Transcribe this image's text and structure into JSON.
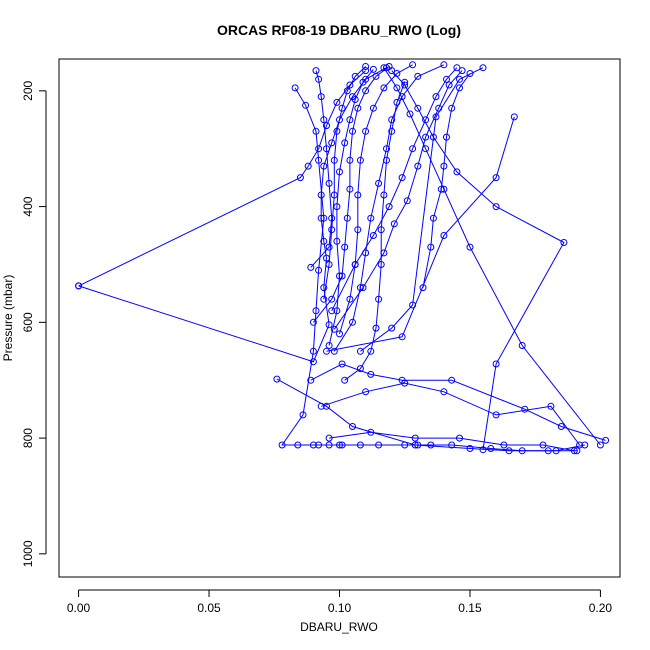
{
  "chart_data": {
    "type": "line",
    "title": "ORCAS RF08-19 DBARU_RWO (Log)",
    "xlabel": "DBARU_RWO",
    "ylabel": "Pressure (mbar)",
    "xlim": [
      -0.0075,
      0.2075
    ],
    "ylim": [
      1040,
      145
    ],
    "y_axis_reversed": true,
    "x_ticks": [
      0.0,
      0.05,
      0.1,
      0.15,
      0.2
    ],
    "x_tick_labels": [
      "0.00",
      "0.05",
      "0.10",
      "0.15",
      "0.20"
    ],
    "y_ticks": [
      200,
      400,
      600,
      800,
      1000
    ],
    "y_tick_labels": [
      "200",
      "400",
      "600",
      "800",
      "1000"
    ],
    "grid": false,
    "marker": "open-circle",
    "series": [
      {
        "values": [
          {
            "x": 0.0,
            "y": 537
          },
          {
            "x": 0.09,
            "y": 668
          },
          {
            "x": 0.096,
            "y": 604
          },
          {
            "x": 0.094,
            "y": 540
          },
          {
            "x": 0.095,
            "y": 489
          },
          {
            "x": 0.094,
            "y": 460
          },
          {
            "x": 0.093,
            "y": 420
          },
          {
            "x": 0.093,
            "y": 380
          },
          {
            "x": 0.094,
            "y": 330
          },
          {
            "x": 0.097,
            "y": 290
          },
          {
            "x": 0.1,
            "y": 250
          },
          {
            "x": 0.105,
            "y": 210
          },
          {
            "x": 0.11,
            "y": 180
          },
          {
            "x": 0.118,
            "y": 160
          }
        ]
      },
      {
        "values": [
          {
            "x": 0.0,
            "y": 537
          },
          {
            "x": 0.085,
            "y": 350
          },
          {
            "x": 0.088,
            "y": 330
          },
          {
            "x": 0.092,
            "y": 300
          },
          {
            "x": 0.095,
            "y": 260
          },
          {
            "x": 0.099,
            "y": 220
          },
          {
            "x": 0.104,
            "y": 190
          },
          {
            "x": 0.11,
            "y": 165
          }
        ]
      },
      {
        "values": [
          {
            "x": 0.083,
            "y": 195
          },
          {
            "x": 0.087,
            "y": 225
          },
          {
            "x": 0.091,
            "y": 270
          },
          {
            "x": 0.092,
            "y": 320
          },
          {
            "x": 0.094,
            "y": 420
          },
          {
            "x": 0.092,
            "y": 510
          },
          {
            "x": 0.091,
            "y": 580
          },
          {
            "x": 0.09,
            "y": 650
          },
          {
            "x": 0.086,
            "y": 760
          },
          {
            "x": 0.078,
            "y": 812
          },
          {
            "x": 0.09,
            "y": 812
          },
          {
            "x": 0.1,
            "y": 812
          },
          {
            "x": 0.115,
            "y": 812
          },
          {
            "x": 0.13,
            "y": 812
          }
        ]
      },
      {
        "values": [
          {
            "x": 0.076,
            "y": 698
          },
          {
            "x": 0.095,
            "y": 745
          },
          {
            "x": 0.105,
            "y": 780
          },
          {
            "x": 0.129,
            "y": 812
          },
          {
            "x": 0.15,
            "y": 818
          },
          {
            "x": 0.165,
            "y": 822
          },
          {
            "x": 0.18,
            "y": 822
          },
          {
            "x": 0.191,
            "y": 822
          }
        ]
      },
      {
        "values": [
          {
            "x": 0.089,
            "y": 700
          },
          {
            "x": 0.101,
            "y": 672
          },
          {
            "x": 0.112,
            "y": 690
          },
          {
            "x": 0.124,
            "y": 700
          },
          {
            "x": 0.143,
            "y": 700
          },
          {
            "x": 0.171,
            "y": 750
          },
          {
            "x": 0.185,
            "y": 780
          },
          {
            "x": 0.202,
            "y": 804
          }
        ]
      },
      {
        "values": [
          {
            "x": 0.093,
            "y": 745
          },
          {
            "x": 0.11,
            "y": 720
          },
          {
            "x": 0.125,
            "y": 705
          },
          {
            "x": 0.14,
            "y": 720
          },
          {
            "x": 0.16,
            "y": 760
          },
          {
            "x": 0.181,
            "y": 745
          },
          {
            "x": 0.192,
            "y": 812
          }
        ]
      },
      {
        "values": [
          {
            "x": 0.098,
            "y": 650
          },
          {
            "x": 0.105,
            "y": 600
          },
          {
            "x": 0.108,
            "y": 540
          },
          {
            "x": 0.11,
            "y": 480
          },
          {
            "x": 0.112,
            "y": 420
          },
          {
            "x": 0.115,
            "y": 360
          },
          {
            "x": 0.118,
            "y": 300
          },
          {
            "x": 0.12,
            "y": 250
          },
          {
            "x": 0.124,
            "y": 210
          },
          {
            "x": 0.13,
            "y": 175
          },
          {
            "x": 0.14,
            "y": 155
          }
        ]
      },
      {
        "values": [
          {
            "x": 0.1,
            "y": 620
          },
          {
            "x": 0.104,
            "y": 560
          },
          {
            "x": 0.106,
            "y": 500
          },
          {
            "x": 0.107,
            "y": 440
          },
          {
            "x": 0.107,
            "y": 380
          },
          {
            "x": 0.108,
            "y": 320
          },
          {
            "x": 0.11,
            "y": 270
          },
          {
            "x": 0.113,
            "y": 230
          },
          {
            "x": 0.117,
            "y": 195
          },
          {
            "x": 0.122,
            "y": 170
          },
          {
            "x": 0.128,
            "y": 155
          }
        ]
      },
      {
        "values": [
          {
            "x": 0.09,
            "y": 600
          },
          {
            "x": 0.097,
            "y": 560
          },
          {
            "x": 0.101,
            "y": 520
          },
          {
            "x": 0.102,
            "y": 470
          },
          {
            "x": 0.103,
            "y": 420
          },
          {
            "x": 0.104,
            "y": 370
          },
          {
            "x": 0.104,
            "y": 320
          },
          {
            "x": 0.105,
            "y": 270
          },
          {
            "x": 0.107,
            "y": 230
          },
          {
            "x": 0.11,
            "y": 200
          },
          {
            "x": 0.114,
            "y": 175
          },
          {
            "x": 0.119,
            "y": 158
          }
        ]
      },
      {
        "values": [
          {
            "x": 0.096,
            "y": 640
          },
          {
            "x": 0.099,
            "y": 580
          },
          {
            "x": 0.1,
            "y": 520
          },
          {
            "x": 0.099,
            "y": 460
          },
          {
            "x": 0.099,
            "y": 400
          },
          {
            "x": 0.1,
            "y": 340
          },
          {
            "x": 0.102,
            "y": 290
          },
          {
            "x": 0.104,
            "y": 250
          },
          {
            "x": 0.106,
            "y": 215
          },
          {
            "x": 0.109,
            "y": 185
          },
          {
            "x": 0.113,
            "y": 163
          }
        ]
      },
      {
        "values": [
          {
            "x": 0.094,
            "y": 560
          },
          {
            "x": 0.096,
            "y": 500
          },
          {
            "x": 0.097,
            "y": 440
          },
          {
            "x": 0.098,
            "y": 380
          },
          {
            "x": 0.098,
            "y": 320
          },
          {
            "x": 0.099,
            "y": 270
          },
          {
            "x": 0.101,
            "y": 230
          },
          {
            "x": 0.103,
            "y": 200
          },
          {
            "x": 0.106,
            "y": 175
          },
          {
            "x": 0.11,
            "y": 158
          }
        ]
      },
      {
        "values": [
          {
            "x": 0.098,
            "y": 612
          },
          {
            "x": 0.109,
            "y": 540
          },
          {
            "x": 0.117,
            "y": 480
          },
          {
            "x": 0.121,
            "y": 430
          },
          {
            "x": 0.126,
            "y": 390
          },
          {
            "x": 0.13,
            "y": 330
          },
          {
            "x": 0.133,
            "y": 280
          },
          {
            "x": 0.138,
            "y": 230
          },
          {
            "x": 0.142,
            "y": 190
          },
          {
            "x": 0.147,
            "y": 165
          }
        ]
      },
      {
        "values": [
          {
            "x": 0.097,
            "y": 580
          },
          {
            "x": 0.106,
            "y": 500
          },
          {
            "x": 0.113,
            "y": 450
          },
          {
            "x": 0.119,
            "y": 400
          },
          {
            "x": 0.124,
            "y": 350
          },
          {
            "x": 0.128,
            "y": 300
          },
          {
            "x": 0.133,
            "y": 250
          },
          {
            "x": 0.137,
            "y": 210
          },
          {
            "x": 0.141,
            "y": 180
          },
          {
            "x": 0.145,
            "y": 160
          }
        ]
      },
      {
        "values": [
          {
            "x": 0.132,
            "y": 540
          },
          {
            "x": 0.135,
            "y": 470
          },
          {
            "x": 0.136,
            "y": 420
          },
          {
            "x": 0.139,
            "y": 370
          },
          {
            "x": 0.14,
            "y": 330
          },
          {
            "x": 0.141,
            "y": 280
          },
          {
            "x": 0.143,
            "y": 230
          },
          {
            "x": 0.146,
            "y": 195
          },
          {
            "x": 0.15,
            "y": 170
          }
        ]
      },
      {
        "values": [
          {
            "x": 0.108,
            "y": 650
          },
          {
            "x": 0.12,
            "y": 610
          },
          {
            "x": 0.128,
            "y": 570
          },
          {
            "x": 0.137,
            "y": 245
          },
          {
            "x": 0.146,
            "y": 180
          },
          {
            "x": 0.155,
            "y": 160
          }
        ]
      },
      {
        "values": [
          {
            "x": 0.095,
            "y": 650
          },
          {
            "x": 0.124,
            "y": 625
          },
          {
            "x": 0.14,
            "y": 450
          },
          {
            "x": 0.16,
            "y": 350
          },
          {
            "x": 0.167,
            "y": 245
          }
        ]
      },
      {
        "values": [
          {
            "x": 0.155,
            "y": 820
          },
          {
            "x": 0.16,
            "y": 672
          },
          {
            "x": 0.186,
            "y": 462
          },
          {
            "x": 0.16,
            "y": 400
          },
          {
            "x": 0.145,
            "y": 340
          },
          {
            "x": 0.136,
            "y": 280
          },
          {
            "x": 0.13,
            "y": 230
          },
          {
            "x": 0.125,
            "y": 190
          },
          {
            "x": 0.12,
            "y": 165
          }
        ]
      },
      {
        "values": [
          {
            "x": 0.2,
            "y": 812
          },
          {
            "x": 0.17,
            "y": 640
          },
          {
            "x": 0.15,
            "y": 470
          },
          {
            "x": 0.14,
            "y": 370
          },
          {
            "x": 0.133,
            "y": 300
          },
          {
            "x": 0.127,
            "y": 240
          },
          {
            "x": 0.122,
            "y": 195
          },
          {
            "x": 0.117,
            "y": 160
          }
        ]
      },
      {
        "values": [
          {
            "x": 0.084,
            "y": 812
          },
          {
            "x": 0.092,
            "y": 812
          },
          {
            "x": 0.096,
            "y": 812
          },
          {
            "x": 0.101,
            "y": 812
          },
          {
            "x": 0.108,
            "y": 812
          },
          {
            "x": 0.125,
            "y": 812
          },
          {
            "x": 0.135,
            "y": 812
          },
          {
            "x": 0.143,
            "y": 812
          },
          {
            "x": 0.158,
            "y": 818
          },
          {
            "x": 0.17,
            "y": 822
          },
          {
            "x": 0.183,
            "y": 822
          },
          {
            "x": 0.194,
            "y": 812
          }
        ]
      },
      {
        "values": [
          {
            "x": 0.096,
            "y": 800
          },
          {
            "x": 0.112,
            "y": 790
          },
          {
            "x": 0.129,
            "y": 800
          },
          {
            "x": 0.146,
            "y": 800
          },
          {
            "x": 0.163,
            "y": 812
          },
          {
            "x": 0.178,
            "y": 812
          },
          {
            "x": 0.19,
            "y": 822
          }
        ]
      },
      {
        "values": [
          {
            "x": 0.089,
            "y": 505
          },
          {
            "x": 0.096,
            "y": 470
          },
          {
            "x": 0.097,
            "y": 420
          },
          {
            "x": 0.096,
            "y": 360
          },
          {
            "x": 0.095,
            "y": 300
          },
          {
            "x": 0.094,
            "y": 250
          },
          {
            "x": 0.093,
            "y": 210
          },
          {
            "x": 0.092,
            "y": 180
          },
          {
            "x": 0.091,
            "y": 165
          }
        ]
      },
      {
        "values": [
          {
            "x": 0.102,
            "y": 700
          },
          {
            "x": 0.108,
            "y": 680
          },
          {
            "x": 0.112,
            "y": 650
          },
          {
            "x": 0.114,
            "y": 610
          },
          {
            "x": 0.115,
            "y": 560
          },
          {
            "x": 0.116,
            "y": 500
          },
          {
            "x": 0.116,
            "y": 440
          },
          {
            "x": 0.117,
            "y": 380
          },
          {
            "x": 0.118,
            "y": 320
          },
          {
            "x": 0.12,
            "y": 270
          },
          {
            "x": 0.122,
            "y": 220
          },
          {
            "x": 0.125,
            "y": 185
          }
        ]
      }
    ]
  }
}
